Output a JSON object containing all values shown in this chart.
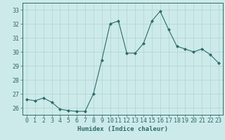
{
  "x": [
    0,
    1,
    2,
    3,
    4,
    5,
    6,
    7,
    8,
    9,
    10,
    11,
    12,
    13,
    14,
    15,
    16,
    17,
    18,
    19,
    20,
    21,
    22,
    23
  ],
  "y": [
    26.6,
    26.5,
    26.7,
    26.4,
    25.9,
    25.8,
    25.75,
    25.75,
    27.0,
    29.4,
    32.0,
    32.2,
    29.9,
    29.9,
    30.6,
    32.2,
    32.9,
    31.6,
    30.4,
    30.2,
    30.0,
    30.2,
    29.8,
    29.2
  ],
  "line_color": "#2e6b6b",
  "marker": "D",
  "marker_size": 2,
  "bg_color": "#cdeaea",
  "grid_color": "#afd4d4",
  "xlabel": "Humidex (Indice chaleur)",
  "ylim": [
    25.5,
    33.5
  ],
  "yticks": [
    26,
    27,
    28,
    29,
    30,
    31,
    32,
    33
  ],
  "xlim": [
    -0.5,
    23.5
  ],
  "xticks": [
    0,
    1,
    2,
    3,
    4,
    5,
    6,
    7,
    8,
    9,
    10,
    11,
    12,
    13,
    14,
    15,
    16,
    17,
    18,
    19,
    20,
    21,
    22,
    23
  ],
  "label_fontsize": 6.5,
  "tick_fontsize": 6
}
